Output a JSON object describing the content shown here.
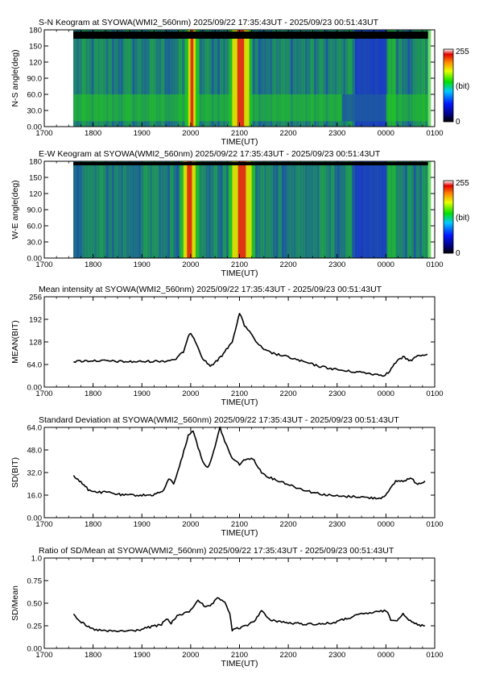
{
  "colors": {
    "background": "#ffffff",
    "axis": "#000000",
    "trace": "#000000",
    "keogram_sky": "#1a32d0",
    "keogram_aurora": "#22c81e",
    "keogram_bright": "#e8e000",
    "keogram_peak": "#e01818",
    "keogram_no_data": "#000000"
  },
  "time_axis": {
    "tick_labels": [
      "1700",
      "1800",
      "1900",
      "2000",
      "2100",
      "2200",
      "2300",
      "0000",
      "0100"
    ],
    "xlabel": "TIME(UT)",
    "data_start": "17:35:43",
    "data_end": "00:51:43"
  },
  "chart_data": [
    {
      "type": "heatmap",
      "title": "S-N Keogram at SYOWA(WMI2_560nm)     2025/09/22 17:35:43UT - 2025/09/23 00:51:43UT",
      "xlabel": "TIME(UT)",
      "ylabel": "N-S angle(deg)",
      "ylim": [
        0,
        180
      ],
      "yticks": [
        "0.00",
        "30.0",
        "60.0",
        "90.0",
        "120",
        "150",
        "180"
      ],
      "colorbar": {
        "min_label": "0",
        "max_label": "255",
        "unit": "(bit)"
      },
      "bright_bands_ut": [
        [
          19.95,
          20.1
        ],
        [
          20.85,
          21.2
        ]
      ]
    },
    {
      "type": "heatmap",
      "title": "E-W Keogram at SYOWA(WMI2_560nm)     2025/09/22 17:35:43UT - 2025/09/23 00:51:43UT",
      "xlabel": "TIME(UT)",
      "ylabel": "W-E angle(deg)",
      "ylim": [
        0,
        180
      ],
      "yticks": [
        "0.00",
        "30.0",
        "60.0",
        "90.0",
        "120",
        "150",
        "180"
      ],
      "colorbar": {
        "min_label": "0",
        "max_label": "255",
        "unit": "(bit)"
      },
      "bright_bands_ut": [
        [
          19.85,
          20.1
        ],
        [
          20.85,
          21.25
        ]
      ]
    },
    {
      "type": "line",
      "title": "Mean intensity at SYOWA(WMI2_560nm)     2025/09/22 17:35:43UT - 2025/09/23 00:51:43UT",
      "xlabel": "TIME(UT)",
      "ylabel": "MEAN(BIT)",
      "ylim": [
        0,
        256
      ],
      "yticks": [
        "0.00",
        "64.0",
        "128",
        "192",
        "256"
      ],
      "x": [
        17.6,
        17.8,
        18.0,
        18.3,
        18.6,
        18.9,
        19.2,
        19.5,
        19.7,
        19.85,
        19.95,
        20.0,
        20.1,
        20.25,
        20.4,
        20.55,
        20.7,
        20.85,
        20.95,
        21.0,
        21.1,
        21.2,
        21.3,
        21.5,
        21.7,
        22.0,
        22.3,
        22.6,
        22.9,
        23.2,
        23.5,
        23.8,
        23.95,
        24.05,
        24.2,
        24.35,
        24.5,
        24.65,
        24.85
      ],
      "y": [
        72,
        74,
        75,
        74,
        72,
        72,
        73,
        74,
        80,
        100,
        140,
        155,
        130,
        80,
        60,
        75,
        100,
        130,
        180,
        210,
        175,
        160,
        135,
        105,
        95,
        85,
        72,
        60,
        52,
        45,
        42,
        36,
        34,
        40,
        70,
        85,
        75,
        88,
        93
      ]
    },
    {
      "type": "line",
      "title": "Standard Deviation at SYOWA(WMI2_560nm)     2025/09/22 17:35:43UT - 2025/09/23 00:51:43UT",
      "xlabel": "TIME(UT)",
      "ylabel": "SD(BIT)",
      "ylim": [
        0,
        64
      ],
      "yticks": [
        "0.00",
        "16.0",
        "32.0",
        "48.0",
        "64.0"
      ],
      "x": [
        17.6,
        17.75,
        17.9,
        18.1,
        18.3,
        18.6,
        18.9,
        19.2,
        19.45,
        19.55,
        19.65,
        19.8,
        19.95,
        20.05,
        20.15,
        20.25,
        20.35,
        20.5,
        20.6,
        20.7,
        20.85,
        21.0,
        21.15,
        21.3,
        21.45,
        21.65,
        21.9,
        22.2,
        22.5,
        22.8,
        23.1,
        23.4,
        23.7,
        23.9,
        24.05,
        24.2,
        24.35,
        24.5,
        24.65,
        24.8
      ],
      "y": [
        30,
        25,
        20,
        18,
        18,
        16,
        16,
        16,
        19,
        28,
        24,
        40,
        58,
        62,
        50,
        40,
        35,
        50,
        64,
        54,
        42,
        38,
        42,
        41,
        32,
        28,
        25,
        21,
        18,
        16,
        15,
        15,
        14,
        14,
        18,
        26,
        26,
        28,
        24,
        26
      ]
    },
    {
      "type": "line",
      "title": "Ratio of SD/Mean at SYOWA(WMI2_560nm)     2025/09/22 17:35:43UT - 2025/09/23 00:51:43UT",
      "xlabel": "TIME(UT)",
      "ylabel": "SD/Mean",
      "ylim": [
        0,
        1
      ],
      "yticks": [
        "0.00",
        "0.25",
        "0.50",
        "0.75",
        "1.0"
      ],
      "x": [
        17.6,
        17.7,
        17.85,
        18.0,
        18.3,
        18.6,
        18.9,
        19.2,
        19.4,
        19.5,
        19.6,
        19.75,
        19.9,
        20.0,
        20.15,
        20.3,
        20.4,
        20.55,
        20.7,
        20.8,
        20.85,
        20.95,
        21.1,
        21.3,
        21.45,
        21.6,
        21.8,
        22.0,
        22.3,
        22.6,
        22.9,
        23.2,
        23.5,
        23.8,
        24.0,
        24.1,
        24.2,
        24.35,
        24.5,
        24.65,
        24.8
      ],
      "y": [
        0.38,
        0.32,
        0.25,
        0.21,
        0.19,
        0.19,
        0.2,
        0.24,
        0.26,
        0.33,
        0.28,
        0.37,
        0.39,
        0.42,
        0.54,
        0.45,
        0.47,
        0.55,
        0.52,
        0.38,
        0.2,
        0.22,
        0.24,
        0.3,
        0.42,
        0.32,
        0.3,
        0.28,
        0.27,
        0.27,
        0.28,
        0.33,
        0.38,
        0.4,
        0.42,
        0.32,
        0.3,
        0.39,
        0.3,
        0.26,
        0.25
      ]
    }
  ]
}
